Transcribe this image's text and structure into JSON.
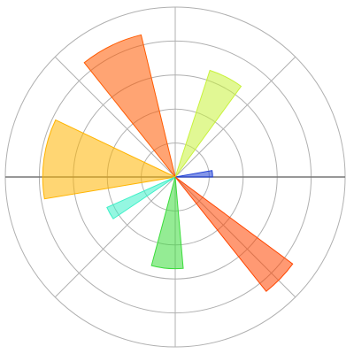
{
  "chart_data": {
    "type": "polar_bar",
    "theta": [
      5,
      63,
      116,
      172,
      209,
      265,
      316
    ],
    "widths": [
      10,
      18,
      25,
      35,
      10,
      20,
      15
    ],
    "values": [
      1.1,
      3.3,
      4.3,
      3.9,
      2.2,
      2.7,
      4.3
    ],
    "colors": [
      "#1f3fd6",
      "#c8f23c",
      "#ff5a00",
      "#ffb400",
      "#3cf0c8",
      "#3cdc3c",
      "#ff4600"
    ],
    "rlim": [
      0,
      5
    ],
    "rgrid": [
      1,
      2,
      3,
      4,
      5
    ],
    "thetagrid": [
      0,
      45,
      90,
      135,
      180,
      225,
      270,
      315
    ],
    "grid": true
  }
}
